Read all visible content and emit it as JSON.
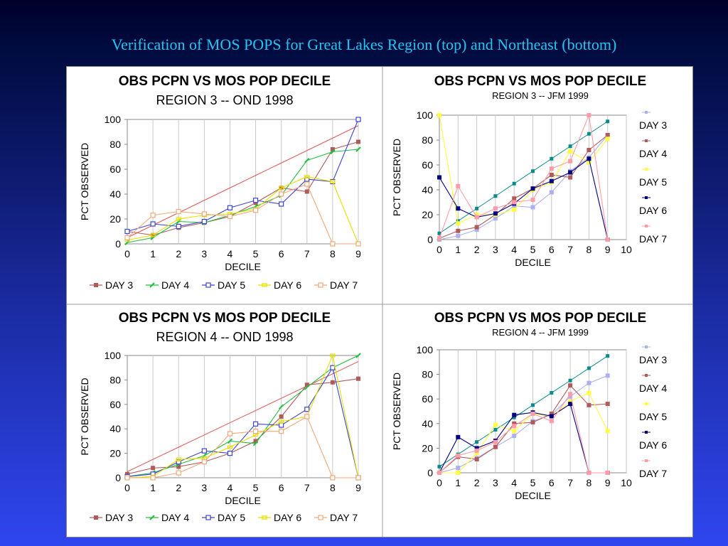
{
  "slide_title": "Verification of MOS POPS for Great Lakes Region (top) and Northeast (bottom)",
  "colors": {
    "DAY 3": "#b05a5a",
    "DAY 4": "#1fbf3f",
    "DAY 5": "#3d44cc",
    "DAY 6": "#e8e000",
    "DAY 7": "#f0a878",
    "CLIM": "#e05555"
  },
  "colors_right": {
    "DAY 3": "#aab0f0",
    "DAY 4": "#b05a5a",
    "DAY 5": "#ffff40",
    "DAY 6": "#000080",
    "DAY 7": "#ff9aa8",
    "REF": "#0a8a8a"
  },
  "chart_data": [
    {
      "type": "line",
      "title": "OBS PCPN VS MOS POP DECILE",
      "subtitle": "REGION 3 -- OND 1998",
      "xlabel": "DECILE",
      "ylabel": "PCT OBSERVED",
      "ylim": [
        0,
        100
      ],
      "xlim": [
        0,
        9
      ],
      "x": [
        0,
        1,
        2,
        3,
        4,
        5,
        6,
        7,
        8,
        9
      ],
      "legend_position": "bottom",
      "reference_line": [
        5,
        15,
        25,
        35,
        45,
        55,
        65,
        75,
        85,
        95
      ],
      "series": [
        {
          "name": "DAY 3",
          "values": [
            10,
            7,
            13,
            17,
            22,
            33,
            45,
            42,
            76,
            82
          ]
        },
        {
          "name": "DAY 4",
          "values": [
            1,
            5,
            18,
            17,
            23,
            30,
            39,
            67,
            74,
            76
          ]
        },
        {
          "name": "DAY 5",
          "values": [
            10,
            16,
            14,
            18,
            29,
            35,
            32,
            52,
            50,
            100
          ]
        },
        {
          "name": "DAY 6",
          "values": [
            3,
            7,
            20,
            23,
            24,
            28,
            45,
            54,
            50,
            0
          ]
        },
        {
          "name": "DAY 7",
          "values": [
            5,
            23,
            26,
            24,
            22,
            27,
            40,
            48,
            0,
            0
          ]
        }
      ]
    },
    {
      "type": "line",
      "title": "OBS PCPN VS MOS POP DECILE",
      "subtitle": "REGION 3 -- JFM 1999",
      "xlabel": "DECILE",
      "ylabel": "PCT OBSERVED",
      "ylim": [
        0,
        100
      ],
      "xlim": [
        0,
        10
      ],
      "x": [
        0,
        1,
        2,
        3,
        4,
        5,
        6,
        7,
        8,
        9
      ],
      "legend_position": "right",
      "reference_line": [
        5,
        15,
        25,
        35,
        45,
        55,
        65,
        75,
        85,
        95
      ],
      "series": [
        {
          "name": "DAY 3",
          "values": [
            0,
            3,
            8,
            17,
            27,
            26,
            38,
            55,
            66,
            84
          ]
        },
        {
          "name": "DAY 4",
          "values": [
            1,
            7,
            10,
            20,
            33,
            41,
            52,
            50,
            72,
            84
          ]
        },
        {
          "name": "DAY 5",
          "values": [
            100,
            13,
            20,
            20,
            24,
            40,
            46,
            71,
            62,
            81
          ]
        },
        {
          "name": "DAY 6",
          "values": [
            50,
            25,
            18,
            21,
            29,
            41,
            47,
            54,
            65,
            0
          ]
        },
        {
          "name": "DAY 7",
          "values": [
            1,
            43,
            18,
            25,
            30,
            32,
            57,
            63,
            100,
            0
          ]
        }
      ]
    },
    {
      "type": "line",
      "title": "OBS PCPN VS MOS POP DECILE",
      "subtitle": "REGION 4 -- OND 1998",
      "xlabel": "DECILE",
      "ylabel": "PCT OBSERVED",
      "ylim": [
        0,
        100
      ],
      "xlim": [
        0,
        9
      ],
      "x": [
        0,
        1,
        2,
        3,
        4,
        5,
        6,
        7,
        8,
        9
      ],
      "legend_position": "bottom",
      "reference_line": [
        5,
        15,
        25,
        35,
        45,
        55,
        65,
        75,
        85,
        95
      ],
      "series": [
        {
          "name": "DAY 3",
          "values": [
            3,
            8,
            9,
            13,
            20,
            30,
            50,
            76,
            78,
            81
          ]
        },
        {
          "name": "DAY 4",
          "values": [
            1,
            4,
            11,
            18,
            30,
            28,
            58,
            74,
            90,
            100
          ]
        },
        {
          "name": "DAY 5",
          "values": [
            1,
            3,
            13,
            22,
            20,
            44,
            43,
            56,
            90,
            0
          ]
        },
        {
          "name": "DAY 6",
          "values": [
            0,
            1,
            15,
            16,
            25,
            35,
            46,
            50,
            100,
            0
          ]
        },
        {
          "name": "DAY 7",
          "values": [
            0,
            0,
            4,
            13,
            36,
            38,
            38,
            50,
            0,
            0
          ]
        }
      ]
    },
    {
      "type": "line",
      "title": "OBS PCPN VS MOS POP DECILE",
      "subtitle": "REGION 4 -- JFM 1999",
      "xlabel": "DECILE",
      "ylabel": "PCT OBSERVED",
      "ylim": [
        0,
        100
      ],
      "xlim": [
        0,
        10
      ],
      "x": [
        0,
        1,
        2,
        3,
        4,
        5,
        6,
        7,
        8,
        9
      ],
      "legend_position": "right",
      "reference_line": [
        5,
        15,
        25,
        35,
        45,
        55,
        65,
        75,
        85,
        95
      ],
      "series": [
        {
          "name": "DAY 3",
          "values": [
            0,
            4,
            12,
            21,
            30,
            42,
            47,
            62,
            73,
            79
          ]
        },
        {
          "name": "DAY 4",
          "values": [
            0,
            13,
            11,
            21,
            40,
            41,
            48,
            71,
            55,
            56
          ]
        },
        {
          "name": "DAY 5",
          "values": [
            0,
            0,
            16,
            39,
            34,
            48,
            46,
            58,
            65,
            34
          ]
        },
        {
          "name": "DAY 6",
          "values": [
            0,
            29,
            20,
            26,
            47,
            49,
            46,
            56,
            0,
            0
          ]
        },
        {
          "name": "DAY 7",
          "values": [
            0,
            14,
            18,
            25,
            38,
            48,
            42,
            64,
            0,
            0
          ]
        }
      ]
    }
  ]
}
